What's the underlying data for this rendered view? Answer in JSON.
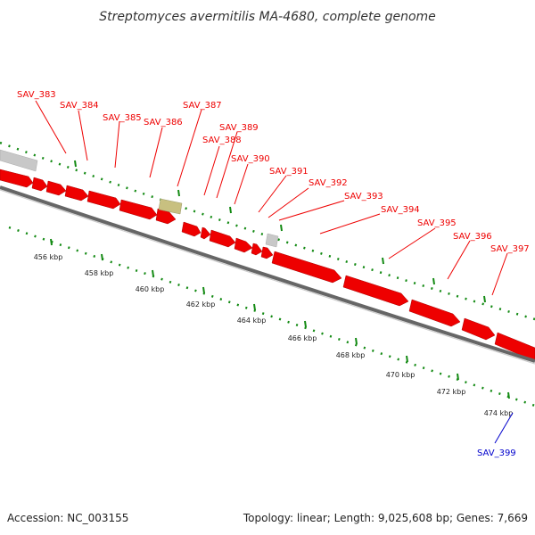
{
  "title": "Streptomyces avermitilis MA-4680, complete genome",
  "footer": {
    "accession": "Accession: NC_003155",
    "summary": "Topology: linear; Length: 9,025,608 bp; Genes: 7,669"
  },
  "colors": {
    "gene": "#ee0000",
    "gene_label": "#ee0000",
    "highlight_label": "#0000cc",
    "tick": "#138a13",
    "backbone": "#777777",
    "other_feature_grey": "#c8c8c8",
    "other_feature_olive": "#c8c080"
  },
  "gene_labels": [
    "SAV_383",
    "SAV_384",
    "SAV_385",
    "SAV_386",
    "SAV_387",
    "SAV_388",
    "SAV_389",
    "SAV_390",
    "SAV_391",
    "SAV_392",
    "SAV_393",
    "SAV_394",
    "SAV_395",
    "SAV_396",
    "SAV_397"
  ],
  "highlight_label": "SAV_399",
  "kbp_labels": [
    "456 kbp",
    "458 kbp",
    "460 kbp",
    "462 kbp",
    "464 kbp",
    "466 kbp",
    "468 kbp",
    "470 kbp",
    "472 kbp",
    "474 kbp"
  ]
}
